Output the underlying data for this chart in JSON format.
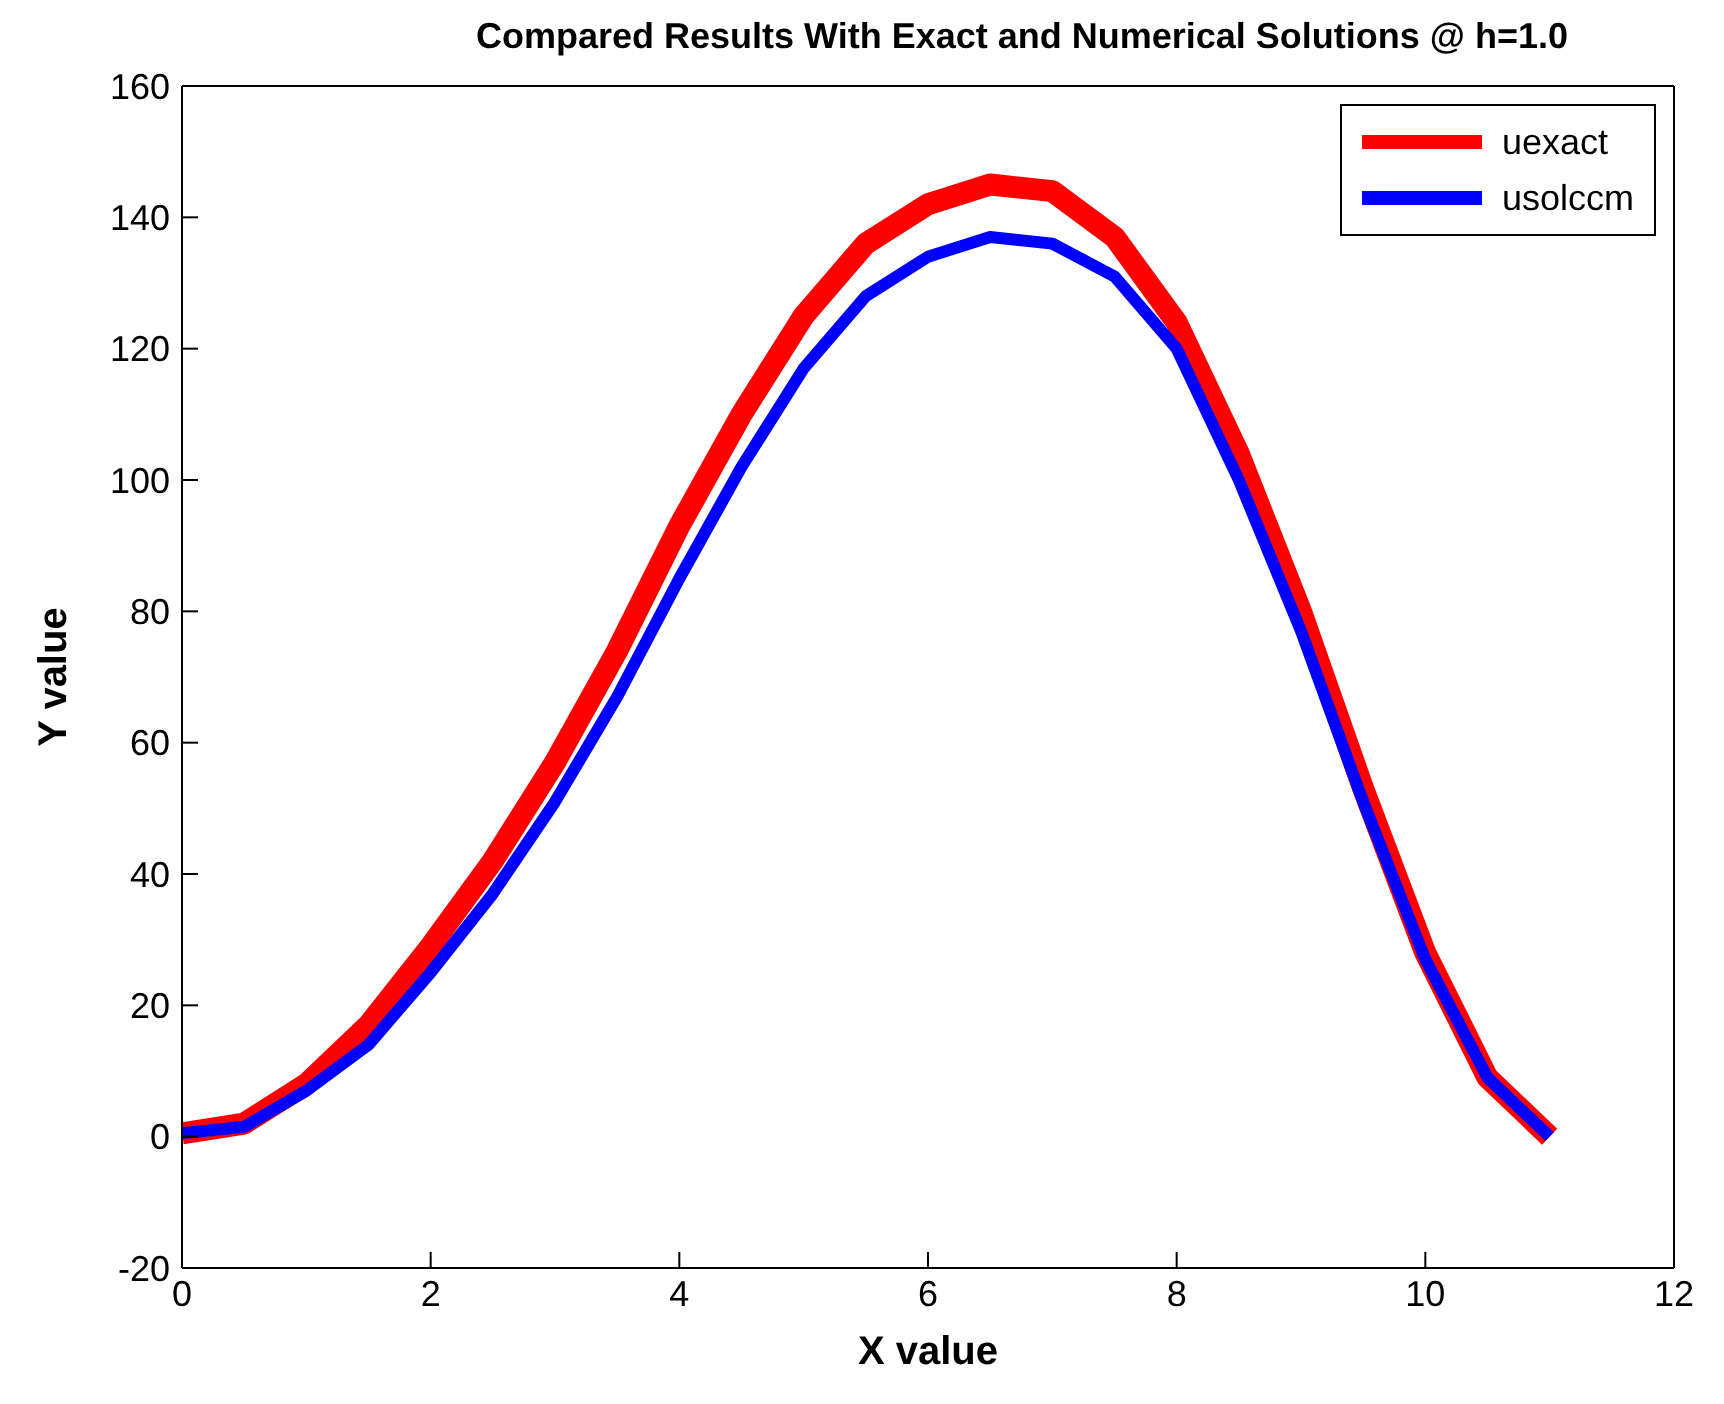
{
  "chart_data": {
    "type": "line",
    "title": "Compared Results With Exact and Numerical Solutions @ h=1.0",
    "xlabel": "X value",
    "ylabel": "Y value",
    "x": [
      0,
      0.5,
      1,
      1.5,
      2,
      2.5,
      3,
      3.5,
      4,
      4.5,
      5,
      5.5,
      6,
      6.5,
      7,
      7.5,
      8,
      8.5,
      9,
      9.5,
      10,
      10.5,
      11
    ],
    "series": [
      {
        "name": "uexact",
        "color": "#ff0000",
        "values": [
          0.5,
          2,
          8,
          17,
          29,
          42,
          57,
          74,
          93,
          110,
          125,
          136,
          142,
          145,
          144,
          137,
          124,
          104,
          80,
          53,
          28,
          9,
          0
        ]
      },
      {
        "name": "usolccm",
        "color": "#0000ff",
        "values": [
          0.5,
          1.5,
          7,
          14,
          25,
          37,
          51,
          67,
          85,
          102,
          117,
          128,
          134,
          137,
          136,
          131,
          120,
          100,
          77,
          51,
          27,
          9,
          0
        ]
      }
    ],
    "xlim": [
      0,
      12
    ],
    "xticks": [
      0,
      2,
      4,
      6,
      8,
      10,
      12
    ],
    "ylim": [
      -20,
      160
    ],
    "yticks": [
      -20,
      0,
      20,
      40,
      60,
      80,
      100,
      120,
      140,
      160
    ],
    "grid": false,
    "legend": "top right",
    "marker": "none",
    "line_style": "solid"
  }
}
